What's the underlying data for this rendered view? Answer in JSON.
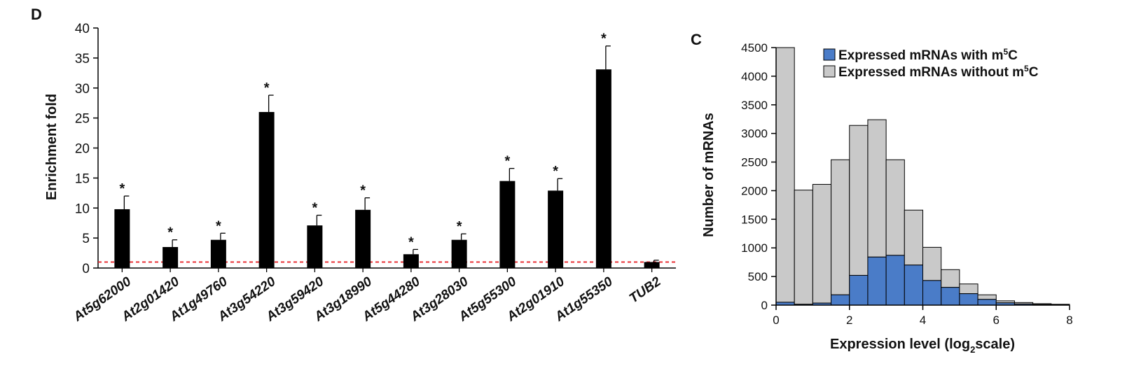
{
  "chart_data": [
    {
      "panel": "D",
      "type": "bar",
      "ylabel": "Enrichment fold",
      "ylim": [
        0,
        40
      ],
      "yticks": [
        0,
        5,
        10,
        15,
        20,
        25,
        30,
        35,
        40
      ],
      "categories": [
        "At5g62000",
        "At2g01420",
        "At1g49760",
        "At3g54220",
        "At3g59420",
        "At3g18990",
        "At5g44280",
        "At3g28030",
        "At5g55300",
        "At2g01910",
        "At1g55350",
        "TUB2"
      ],
      "values": [
        9.8,
        3.5,
        4.7,
        26.0,
        7.1,
        9.7,
        2.3,
        4.7,
        14.5,
        12.9,
        33.1,
        1.0
      ],
      "errors": [
        2.2,
        1.2,
        1.1,
        2.8,
        1.7,
        2.0,
        0.8,
        1.0,
        2.1,
        2.0,
        3.9,
        0.3
      ],
      "significance": [
        "*",
        "*",
        "*",
        "*",
        "*",
        "*",
        "*",
        "*",
        "*",
        "*",
        "*",
        ""
      ],
      "reference_line": 1,
      "colors": {
        "bars": "#000000",
        "reference_line": "#e8252a"
      }
    },
    {
      "panel": "C",
      "type": "bar",
      "stacked": true,
      "xlabel": "Expression level (log",
      "xlabel_sub": "2",
      "xlabel_tail": "scale)",
      "ylabel": "Number of mRNAs",
      "xlim": [
        0,
        8
      ],
      "ylim": [
        0,
        4500
      ],
      "xticks": [
        0,
        2,
        4,
        6,
        8
      ],
      "yticks": [
        0,
        500,
        1000,
        1500,
        2000,
        2500,
        3000,
        3500,
        4000,
        4500
      ],
      "bin_width": 0.5,
      "bin_starts": [
        0,
        0.5,
        1,
        1.5,
        2,
        2.5,
        3,
        3.5,
        4,
        4.5,
        5,
        5.5,
        6,
        6.5,
        7,
        7.5
      ],
      "series": [
        {
          "name": "Expressed mRNAs with m",
          "name_sup": "5",
          "name_tail": "C",
          "color": "#4a7cc8",
          "values": [
            50,
            15,
            35,
            180,
            520,
            840,
            870,
            700,
            430,
            310,
            200,
            100,
            40,
            20,
            10,
            5
          ]
        },
        {
          "name": "Expressed mRNAs without m",
          "name_sup": "5",
          "name_tail": "C",
          "color": "#c9c9c9",
          "values": [
            4450,
            1995,
            2075,
            2360,
            2620,
            2400,
            1670,
            960,
            580,
            310,
            170,
            80,
            35,
            25,
            15,
            10
          ]
        }
      ],
      "legend_position": "top"
    }
  ]
}
